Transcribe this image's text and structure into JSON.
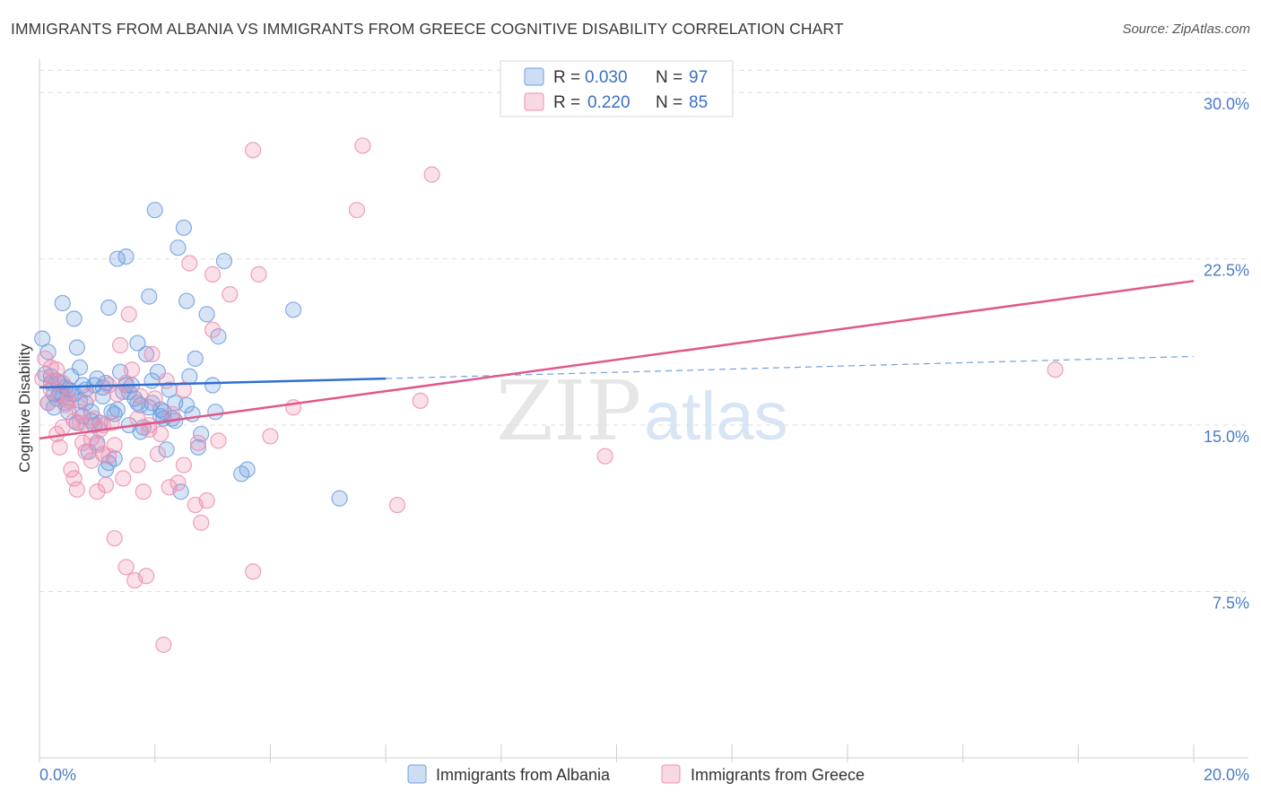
{
  "title": "IMMIGRANTS FROM ALBANIA VS IMMIGRANTS FROM GREECE COGNITIVE DISABILITY CORRELATION CHART",
  "source": "Source: ZipAtlas.com",
  "watermark": {
    "zip": "ZIP",
    "atlas": "atlas"
  },
  "legend_top": [
    {
      "r_label": "R = ",
      "r_value": "0.030",
      "n_label": "N = ",
      "n_value": "97",
      "color": "#6f9fe0"
    },
    {
      "r_label": "R = ",
      "r_value": "0.220",
      "n_label": "N = ",
      "n_value": "85",
      "color": "#ec8fb0"
    }
  ],
  "chart_data": {
    "type": "scatter",
    "title": "IMMIGRANTS FROM ALBANIA VS IMMIGRANTS FROM GREECE COGNITIVE DISABILITY CORRELATION CHART",
    "xlabel": "",
    "ylabel": "Cognitive Disability",
    "xlim": [
      0,
      20
    ],
    "ylim": [
      0,
      31.5
    ],
    "x_tick_labels": [
      "0.0%",
      "20.0%"
    ],
    "y_ticks": [
      7.5,
      15,
      22.5,
      30
    ],
    "y_tick_labels": [
      "7.5%",
      "15.0%",
      "22.5%",
      "30.0%"
    ],
    "series": [
      {
        "name": "Immigrants from Albania",
        "color": "#6f9fe0",
        "trend": {
          "x0": 0.0,
          "y0": 16.7,
          "x1": 6.0,
          "y1": 17.1,
          "dash_to_x": 20.0,
          "dash_to_y": 18.1
        },
        "points": [
          [
            0.05,
            18.9
          ],
          [
            0.1,
            17.3
          ],
          [
            0.15,
            18.3
          ],
          [
            0.2,
            16.9
          ],
          [
            0.25,
            15.8
          ],
          [
            0.3,
            17.0
          ],
          [
            0.35,
            16.5
          ],
          [
            0.4,
            20.5
          ],
          [
            0.45,
            16.0
          ],
          [
            0.5,
            15.6
          ],
          [
            0.55,
            16.4
          ],
          [
            0.6,
            19.8
          ],
          [
            0.65,
            18.5
          ],
          [
            0.7,
            17.6
          ],
          [
            0.75,
            16.8
          ],
          [
            0.8,
            16.0
          ],
          [
            0.85,
            13.8
          ],
          [
            0.9,
            15.2
          ],
          [
            0.95,
            16.8
          ],
          [
            1.0,
            17.1
          ],
          [
            1.05,
            15.1
          ],
          [
            1.1,
            16.3
          ],
          [
            1.15,
            13.0
          ],
          [
            1.2,
            20.3
          ],
          [
            1.25,
            15.6
          ],
          [
            1.3,
            13.5
          ],
          [
            1.35,
            22.5
          ],
          [
            1.4,
            17.4
          ],
          [
            1.45,
            16.5
          ],
          [
            1.5,
            22.6
          ],
          [
            1.55,
            15.0
          ],
          [
            1.6,
            16.8
          ],
          [
            1.65,
            16.2
          ],
          [
            1.7,
            18.7
          ],
          [
            1.75,
            15.9
          ],
          [
            1.8,
            14.9
          ],
          [
            1.85,
            18.2
          ],
          [
            1.9,
            20.8
          ],
          [
            1.95,
            17.0
          ],
          [
            2.0,
            24.7
          ],
          [
            2.05,
            17.4
          ],
          [
            2.1,
            15.7
          ],
          [
            2.15,
            15.3
          ],
          [
            2.2,
            13.9
          ],
          [
            2.25,
            16.6
          ],
          [
            2.3,
            15.3
          ],
          [
            2.35,
            16.0
          ],
          [
            2.4,
            23.0
          ],
          [
            2.45,
            12.0
          ],
          [
            2.5,
            23.9
          ],
          [
            2.55,
            20.6
          ],
          [
            2.6,
            17.2
          ],
          [
            2.65,
            15.5
          ],
          [
            2.7,
            18.0
          ],
          [
            2.8,
            14.6
          ],
          [
            2.9,
            20.0
          ],
          [
            3.0,
            16.8
          ],
          [
            3.05,
            15.6
          ],
          [
            3.1,
            19.0
          ],
          [
            3.2,
            22.4
          ],
          [
            3.5,
            12.8
          ],
          [
            3.6,
            13.0
          ],
          [
            4.4,
            20.2
          ],
          [
            5.2,
            11.7
          ],
          [
            0.3,
            16.2
          ],
          [
            0.5,
            16.6
          ],
          [
            0.7,
            16.1
          ],
          [
            0.9,
            15.6
          ],
          [
            1.1,
            16.7
          ],
          [
            1.3,
            15.5
          ],
          [
            1.5,
            16.8
          ],
          [
            1.7,
            16.0
          ],
          [
            1.9,
            15.8
          ],
          [
            2.1,
            15.4
          ],
          [
            0.2,
            17.2
          ],
          [
            0.4,
            16.3
          ],
          [
            0.6,
            16.4
          ],
          [
            0.8,
            16.6
          ],
          [
            1.0,
            14.2
          ],
          [
            1.2,
            13.3
          ],
          [
            0.15,
            16.0
          ],
          [
            0.35,
            16.9
          ],
          [
            0.55,
            17.2
          ],
          [
            0.75,
            15.4
          ],
          [
            0.95,
            15.0
          ],
          [
            1.15,
            16.9
          ],
          [
            1.35,
            15.7
          ],
          [
            1.55,
            16.5
          ],
          [
            1.75,
            14.7
          ],
          [
            1.95,
            16.0
          ],
          [
            2.15,
            15.6
          ],
          [
            2.35,
            15.2
          ],
          [
            2.55,
            15.9
          ],
          [
            2.75,
            14.0
          ],
          [
            0.25,
            16.4
          ],
          [
            0.45,
            16.7
          ],
          [
            0.65,
            15.1
          ]
        ]
      },
      {
        "name": "Immigrants from Greece",
        "color": "#ec8fb0",
        "trend": {
          "x0": 0.0,
          "y0": 14.4,
          "x1": 20.0,
          "y1": 21.5
        },
        "points": [
          [
            0.05,
            17.1
          ],
          [
            0.1,
            18.0
          ],
          [
            0.15,
            16.0
          ],
          [
            0.2,
            17.6
          ],
          [
            0.25,
            17.0
          ],
          [
            0.3,
            14.6
          ],
          [
            0.35,
            14.0
          ],
          [
            0.4,
            16.9
          ],
          [
            0.45,
            15.9
          ],
          [
            0.5,
            16.2
          ],
          [
            0.55,
            13.0
          ],
          [
            0.6,
            12.6
          ],
          [
            0.65,
            12.1
          ],
          [
            0.7,
            15.1
          ],
          [
            0.75,
            14.2
          ],
          [
            0.8,
            15.0
          ],
          [
            0.85,
            16.3
          ],
          [
            0.9,
            13.4
          ],
          [
            0.95,
            15.3
          ],
          [
            1.0,
            12.0
          ],
          [
            1.05,
            14.8
          ],
          [
            1.1,
            13.7
          ],
          [
            1.15,
            12.3
          ],
          [
            1.2,
            13.6
          ],
          [
            1.25,
            15.1
          ],
          [
            1.3,
            9.9
          ],
          [
            1.35,
            16.4
          ],
          [
            1.4,
            18.6
          ],
          [
            1.45,
            12.6
          ],
          [
            1.5,
            8.6
          ],
          [
            1.55,
            20.0
          ],
          [
            1.6,
            17.5
          ],
          [
            1.65,
            8.0
          ],
          [
            1.7,
            13.2
          ],
          [
            1.75,
            16.3
          ],
          [
            1.8,
            12.0
          ],
          [
            1.85,
            8.2
          ],
          [
            1.9,
            14.8
          ],
          [
            1.95,
            18.2
          ],
          [
            2.0,
            16.2
          ],
          [
            2.05,
            13.7
          ],
          [
            2.1,
            14.6
          ],
          [
            2.15,
            5.1
          ],
          [
            2.2,
            17.0
          ],
          [
            2.25,
            12.2
          ],
          [
            2.3,
            15.5
          ],
          [
            2.4,
            12.4
          ],
          [
            2.5,
            16.6
          ],
          [
            2.6,
            22.3
          ],
          [
            2.7,
            11.4
          ],
          [
            2.75,
            14.2
          ],
          [
            2.8,
            10.6
          ],
          [
            2.9,
            11.6
          ],
          [
            3.0,
            21.8
          ],
          [
            3.1,
            14.3
          ],
          [
            3.3,
            20.9
          ],
          [
            3.7,
            8.4
          ],
          [
            3.8,
            21.8
          ],
          [
            4.4,
            15.8
          ],
          [
            5.5,
            24.7
          ],
          [
            5.6,
            27.6
          ],
          [
            6.2,
            11.4
          ],
          [
            6.6,
            16.1
          ],
          [
            6.8,
            26.3
          ],
          [
            9.8,
            13.6
          ],
          [
            17.6,
            17.5
          ],
          [
            3.7,
            27.4
          ],
          [
            0.3,
            17.5
          ],
          [
            0.5,
            16.1
          ],
          [
            0.7,
            15.6
          ],
          [
            0.9,
            14.4
          ],
          [
            1.1,
            15.0
          ],
          [
            1.3,
            14.1
          ],
          [
            1.5,
            16.9
          ],
          [
            1.7,
            15.3
          ],
          [
            1.9,
            15.0
          ],
          [
            0.2,
            16.6
          ],
          [
            0.4,
            14.9
          ],
          [
            0.6,
            15.2
          ],
          [
            0.8,
            13.8
          ],
          [
            1.0,
            14.1
          ],
          [
            1.2,
            16.8
          ],
          [
            2.5,
            13.2
          ],
          [
            3.0,
            19.3
          ],
          [
            4.0,
            14.5
          ]
        ]
      }
    ]
  },
  "bottom_legend": [
    {
      "label": "Immigrants from Albania",
      "color": "#6f9fe0"
    },
    {
      "label": "Immigrants from Greece",
      "color": "#ec8fb0"
    }
  ]
}
